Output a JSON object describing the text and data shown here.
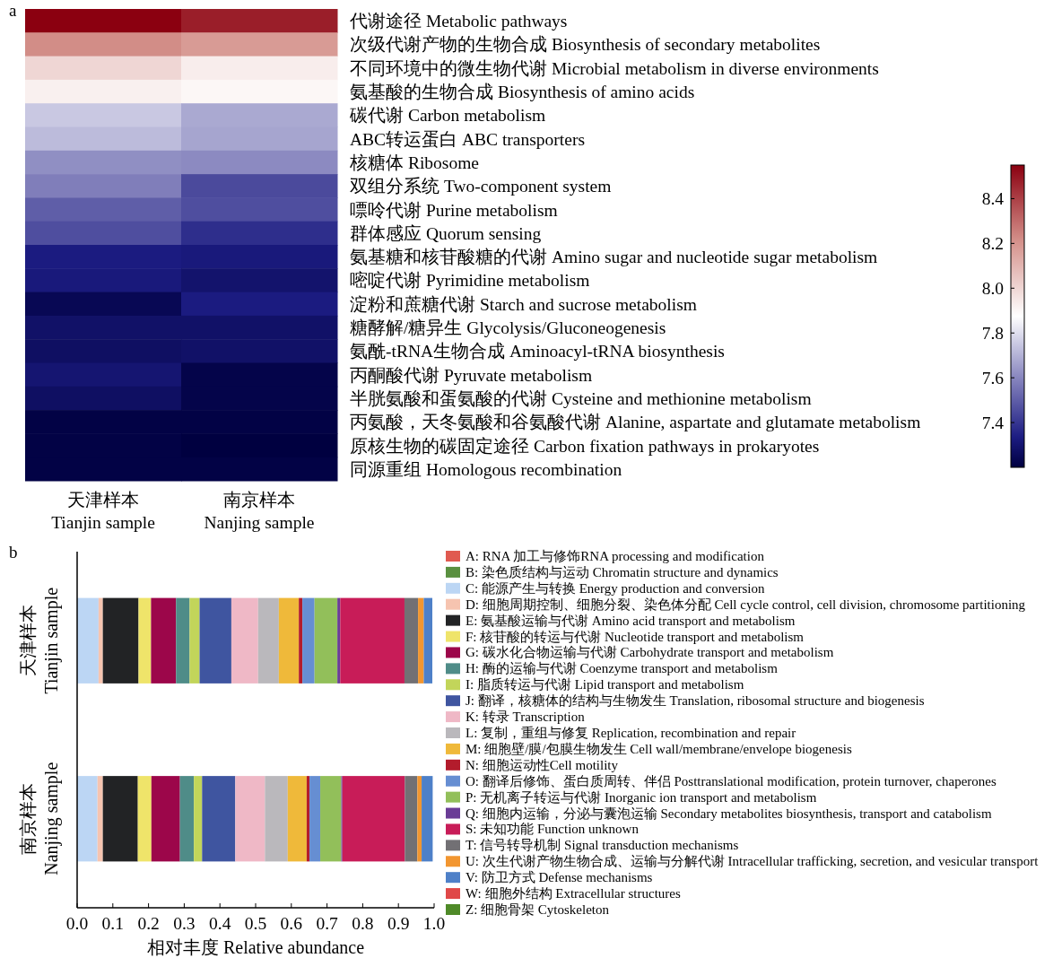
{
  "chart_data": [
    {
      "type": "heatmap",
      "annotations": [
        "a"
      ],
      "categories": [
        "天津样本\nTianjin sample",
        "南京样本\nNanjing sample"
      ],
      "y_categories": [
        "代谢途径 Metabolic pathways",
        "次级代谢产物的生物合成 Biosynthesis of secondary metabolites",
        "不同环境中的微生物代谢 Microbial metabolism in diverse environments",
        "氨基酸的生物合成 Biosynthesis of amino acids",
        "碳代谢 Carbon metabolism",
        "ABC转运蛋白 ABC transporters",
        "核糖体 Ribosome",
        "双组分系统 Two-component system",
        "嘌呤代谢 Purine metabolism",
        "群体感应 Quorum sensing",
        "氨基糖和核苷酸糖的代谢 Amino sugar and nucleotide sugar metabolism",
        "嘧啶代谢 Pyrimidine metabolism",
        "淀粉和蔗糖代谢 Starch and sucrose metabolism",
        "糖酵解/糖异生 Glycolysis/Gluconeogenesis",
        "氨酰-tRNA生物合成 Aminoacyl-tRNA biosynthesis",
        "丙酮酸代谢 Pyruvate metabolism",
        "半胱氨酸和蛋氨酸的代谢 Cysteine and methionine metabolism",
        "丙氨酸，天冬氨酸和谷氨酸代谢 Alanine, aspartate and glutamate metabolism",
        "原核生物的碳固定途径 Carbon fixation pathways in prokaryotes",
        "同源重组 Homologous recombination"
      ],
      "cells": [
        [
          8.55,
          8.48
        ],
        [
          8.22,
          8.18
        ],
        [
          8.0,
          7.93
        ],
        [
          7.92,
          7.9
        ],
        [
          7.75,
          7.68
        ],
        [
          7.72,
          7.67
        ],
        [
          7.62,
          7.61
        ],
        [
          7.58,
          7.45
        ],
        [
          7.5,
          7.46
        ],
        [
          7.46,
          7.38
        ],
        [
          7.33,
          7.32
        ],
        [
          7.32,
          7.29
        ],
        [
          7.24,
          7.33
        ],
        [
          7.28,
          7.28
        ],
        [
          7.27,
          7.28
        ],
        [
          7.3,
          7.22
        ],
        [
          7.27,
          7.22
        ],
        [
          7.21,
          7.21
        ],
        [
          7.21,
          7.2
        ],
        [
          7.21,
          7.21
        ]
      ],
      "clim": [
        7.2,
        8.55
      ],
      "cticks": [
        {
          "value": 7.4,
          "label": "7.4"
        },
        {
          "value": 7.6,
          "label": "7.6"
        },
        {
          "value": 7.8,
          "label": "7.8"
        },
        {
          "value": 8.0,
          "label": "8.0"
        },
        {
          "value": 8.2,
          "label": "8.2"
        },
        {
          "value": 8.4,
          "label": "8.4"
        }
      ]
    },
    {
      "type": "bar",
      "orientation": "horizontal",
      "stacked": true,
      "annotations": [
        "b"
      ],
      "xlabel": "相对丰度 Relative abundance",
      "categories": [
        "天津样本\nTianjin sample",
        "南京样本\nNanjing sample"
      ],
      "xlim": [
        0,
        1
      ],
      "xticks": [
        {
          "value": 0,
          "label": "0.0"
        },
        {
          "value": 0.1,
          "label": "0.1"
        },
        {
          "value": 0.2,
          "label": "0.2"
        },
        {
          "value": 0.3,
          "label": "0.3"
        },
        {
          "value": 0.4,
          "label": "0.4"
        },
        {
          "value": 0.5,
          "label": "0.5"
        },
        {
          "value": 0.6,
          "label": "0.6"
        },
        {
          "value": 0.7,
          "label": "0.7"
        },
        {
          "value": 0.8,
          "label": "0.8"
        },
        {
          "value": 0.9,
          "label": "0.9"
        },
        {
          "value": 1,
          "label": "1.0"
        }
      ],
      "legend": "right",
      "series": [
        {
          "name": "A: RNA 加工与修饰RNA processing and modification",
          "color": "#e05a50",
          "values": [
            0,
            0
          ]
        },
        {
          "name": "B: 染色质结构与运动 Chromatin structure and dynamics",
          "color": "#5a9040",
          "values": [
            0,
            0
          ]
        },
        {
          "name": "C: 能源产生与转换 Energy production and conversion",
          "color": "#bcd6f4",
          "values": [
            0.06,
            0.057
          ]
        },
        {
          "name": "D: 细胞周期控制、细胞分裂、染色体分配 Cell cycle control, cell division, chromosome partitioning",
          "color": "#f6c4b0",
          "values": [
            0.012,
            0.015
          ]
        },
        {
          "name": "E: 氨基酸运输与代谢 Amino acid transport and metabolism",
          "color": "#222325",
          "values": [
            0.1,
            0.098
          ]
        },
        {
          "name": "F: 核苷酸的转运与代谢 Nucleotide transport and metabolism",
          "color": "#efe46a",
          "values": [
            0.035,
            0.038
          ]
        },
        {
          "name": "G: 碳水化合物运输与代谢 Carbohydrate transport and metabolism",
          "color": "#9c064a",
          "values": [
            0.07,
            0.08
          ]
        },
        {
          "name": "H: 酶的运输与代谢 Coenzyme transport and metabolism",
          "color": "#4f8c88",
          "values": [
            0.038,
            0.039
          ]
        },
        {
          "name": "I: 脂质转运与代谢 Lipid transport and metabolism",
          "color": "#c2d55a",
          "values": [
            0.028,
            0.023
          ]
        },
        {
          "name": "J: 翻译，核糖体的结构与生物发生 Translation, ribosomal structure and biogenesis",
          "color": "#3f55a0",
          "values": [
            0.089,
            0.093
          ]
        },
        {
          "name": "K: 转录 Transcription",
          "color": "#efb8c6",
          "values": [
            0.075,
            0.083
          ]
        },
        {
          "name": "L: 复制，重组与修复 Replication, recombination and repair",
          "color": "#bab8bc",
          "values": [
            0.058,
            0.064
          ]
        },
        {
          "name": "M: 细胞壁/膜/包膜生物发生 Cell wall/membrane/envelope biogenesis",
          "color": "#efb93a",
          "values": [
            0.056,
            0.053
          ]
        },
        {
          "name": "N: 细胞运动性Cell motility",
          "color": "#b31c2c",
          "values": [
            0.01,
            0.008
          ]
        },
        {
          "name": "O: 翻译后修饰、蛋白质周转、伴侣 Posttranslational modification, protein turnover, chaperones",
          "color": "#668ed2",
          "values": [
            0.034,
            0.03
          ]
        },
        {
          "name": "P: 无机离子转运与代谢 Inorganic ion transport and metabolism",
          "color": "#92bf5a",
          "values": [
            0.064,
            0.059
          ]
        },
        {
          "name": "Q: 细胞内运输，分泌与囊泡运输 Secondary metabolites biosynthesis, transport and catabolism",
          "color": "#6a3c96",
          "values": [
            0.008,
            0.003
          ]
        },
        {
          "name": "S: 未知功能 Function unknown",
          "color": "#c81c58",
          "values": [
            0.18,
            0.175
          ]
        },
        {
          "name": "T: 信号转导机制 Signal transduction mechanisms",
          "color": "#727074",
          "values": [
            0.038,
            0.035
          ]
        },
        {
          "name": "U: 次生代谢产物生物合成、运输与分解代谢 Intracellular trafficking, secretion, and vesicular transport",
          "color": "#f29630",
          "values": [
            0.016,
            0.012
          ]
        },
        {
          "name": "V: 防卫方式 Defense mechanisms",
          "color": "#4e80c8",
          "values": [
            0.024,
            0.031
          ]
        },
        {
          "name": "W: 细胞外结构 Extracellular structures",
          "color": "#e04848",
          "values": [
            0,
            0
          ]
        },
        {
          "name": "Z: 细胞骨架 Cytoskeleton",
          "color": "#4f8a28",
          "values": [
            0,
            0
          ]
        }
      ]
    }
  ]
}
